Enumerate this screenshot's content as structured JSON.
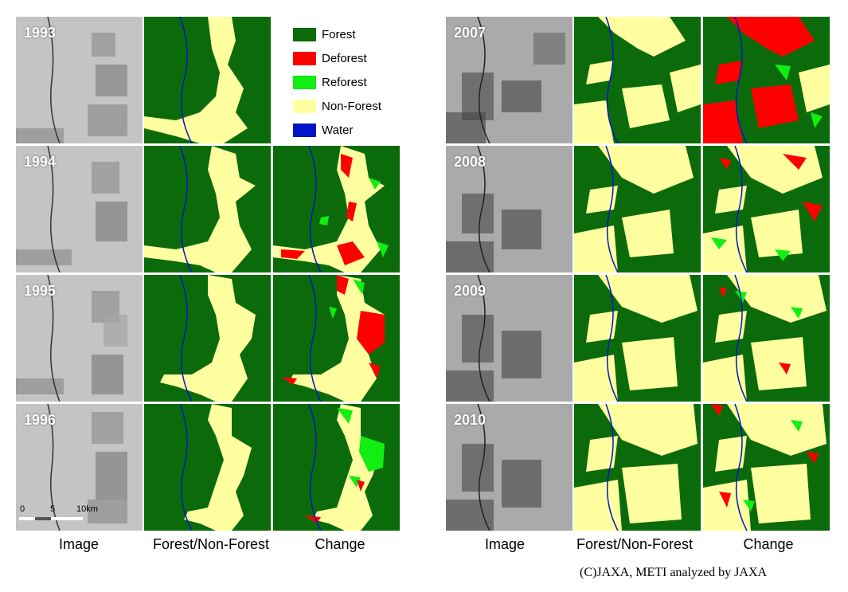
{
  "colors": {
    "forest": "#0b6b0b",
    "deforest": "#ff0000",
    "reforest": "#11ee11",
    "nonforest": "#ffffa0",
    "water": "#0015c8",
    "sar_light": "#c8c8c8",
    "sar_dark": "#5a5a5a"
  },
  "legend": {
    "forest": "Forest",
    "deforest": "Deforest",
    "reforest": "Reforest",
    "nonforest": "Non-Forest",
    "water": "Water"
  },
  "years_left": [
    "1993",
    "1994",
    "1995",
    "1996"
  ],
  "years_right": [
    "2007",
    "2008",
    "2009",
    "2010"
  ],
  "captions": {
    "image": "Image",
    "forest_nonforest": "Forest/Non-Forest",
    "change": "Change"
  },
  "scale_bar": {
    "tick_0": "0",
    "tick_5": "5",
    "tick_10": "10km"
  },
  "credit": "(C)JAXA, METI analyzed by JAXA"
}
